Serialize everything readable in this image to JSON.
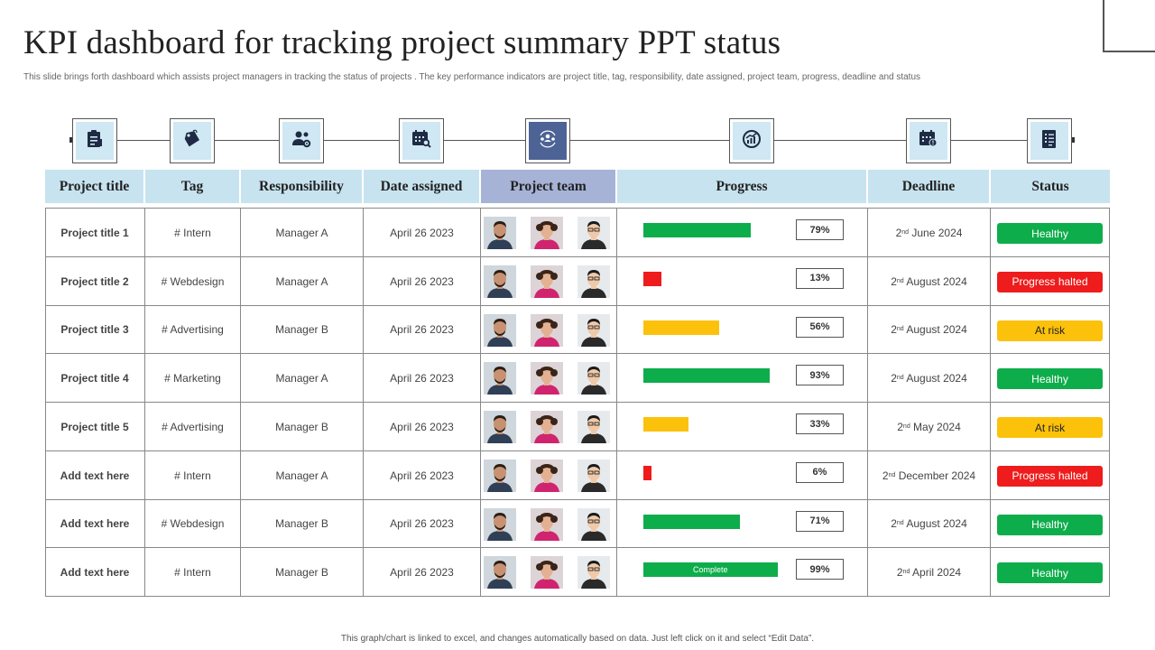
{
  "title": "KPI dashboard for tracking project summary PPT status",
  "subtitle": "This slide brings forth dashboard which assists project managers in tracking the status of projects . The key performance indicators are project title, tag, responsibility, date assigned, project team, progress, deadline and status",
  "icons": [
    "clipboard-icon",
    "price-tag-icon",
    "people-gear-icon",
    "calendar-search-icon",
    "team-cycle-icon",
    "progress-chart-icon",
    "calendar-deadline-icon",
    "checklist-icon"
  ],
  "headers": {
    "project_title": "Project title",
    "tag": "Tag",
    "responsibility": "Responsibility",
    "date_assigned": "Date assigned",
    "project_team": "Project team",
    "progress": "Progress",
    "deadline": "Deadline",
    "status": "Status"
  },
  "rows": [
    {
      "title": "Project title 1",
      "tag": "# Intern",
      "responsibility": "Manager A",
      "date": "April 26 2023",
      "progress": 79,
      "progress_label": "79%",
      "bar_text": "",
      "bar_color": "#0ead4b",
      "deadline_day": "2",
      "deadline_suffix": "nd",
      "deadline_rest": " June 2024",
      "status": "Healthy",
      "status_kind": "green"
    },
    {
      "title": "Project title 2",
      "tag": "# Webdesign",
      "responsibility": "Manager A",
      "date": "April 26 2023",
      "progress": 13,
      "progress_label": "13%",
      "bar_text": "",
      "bar_color": "#ee1c1c",
      "deadline_day": "2",
      "deadline_suffix": "nd",
      "deadline_rest": " August 2024",
      "status": "Progress halted",
      "status_kind": "red"
    },
    {
      "title": "Project title 3",
      "tag": "# Advertising",
      "responsibility": "Manager B",
      "date": "April 26 2023",
      "progress": 56,
      "progress_label": "56%",
      "bar_text": "",
      "bar_color": "#fcc10b",
      "deadline_day": "2",
      "deadline_suffix": "nd",
      "deadline_rest": " August 2024",
      "status": "At risk",
      "status_kind": "amber"
    },
    {
      "title": "Project title 4",
      "tag": "# Marketing",
      "responsibility": "Manager A",
      "date": "April 26 2023",
      "progress": 93,
      "progress_label": "93%",
      "bar_text": "",
      "bar_color": "#0ead4b",
      "deadline_day": "2",
      "deadline_suffix": "nd",
      "deadline_rest": " August 2024",
      "status": "Healthy",
      "status_kind": "green"
    },
    {
      "title": "Project title 5",
      "tag": "# Advertising",
      "responsibility": "Manager B",
      "date": "April 26 2023",
      "progress": 33,
      "progress_label": "33%",
      "bar_text": "",
      "bar_color": "#fcc10b",
      "deadline_day": "2",
      "deadline_suffix": "nd",
      "deadline_rest": " May 2024",
      "status": "At risk",
      "status_kind": "amber"
    },
    {
      "title": "Add text here",
      "tag": "# Intern",
      "responsibility": "Manager A",
      "date": "April 26 2023",
      "progress": 6,
      "progress_label": "6%",
      "bar_text": "",
      "bar_color": "#ee1c1c",
      "deadline_day": "2",
      "deadline_suffix": "nd",
      "deadline_rest": " December 2024",
      "status": "Progress halted",
      "status_kind": "red"
    },
    {
      "title": "Add text here",
      "tag": "# Webdesign",
      "responsibility": "Manager B",
      "date": "April 26 2023",
      "progress": 71,
      "progress_label": "71%",
      "bar_text": "",
      "bar_color": "#0ead4b",
      "deadline_day": "2",
      "deadline_suffix": "nd",
      "deadline_rest": " August 2024",
      "status": "Healthy",
      "status_kind": "green"
    },
    {
      "title": "Add text here",
      "tag": "# Intern",
      "responsibility": "Manager B",
      "date": "April 26 2023",
      "progress": 99,
      "progress_label": "99%",
      "bar_text": "Complete",
      "bar_color": "#0ead4b",
      "deadline_day": "2",
      "deadline_suffix": "nd",
      "deadline_rest": " April 2024",
      "status": "Healthy",
      "status_kind": "green"
    }
  ],
  "footer": "This graph/chart is linked to excel, and changes automatically based on data. Just left click on it and select “Edit Data”."
}
